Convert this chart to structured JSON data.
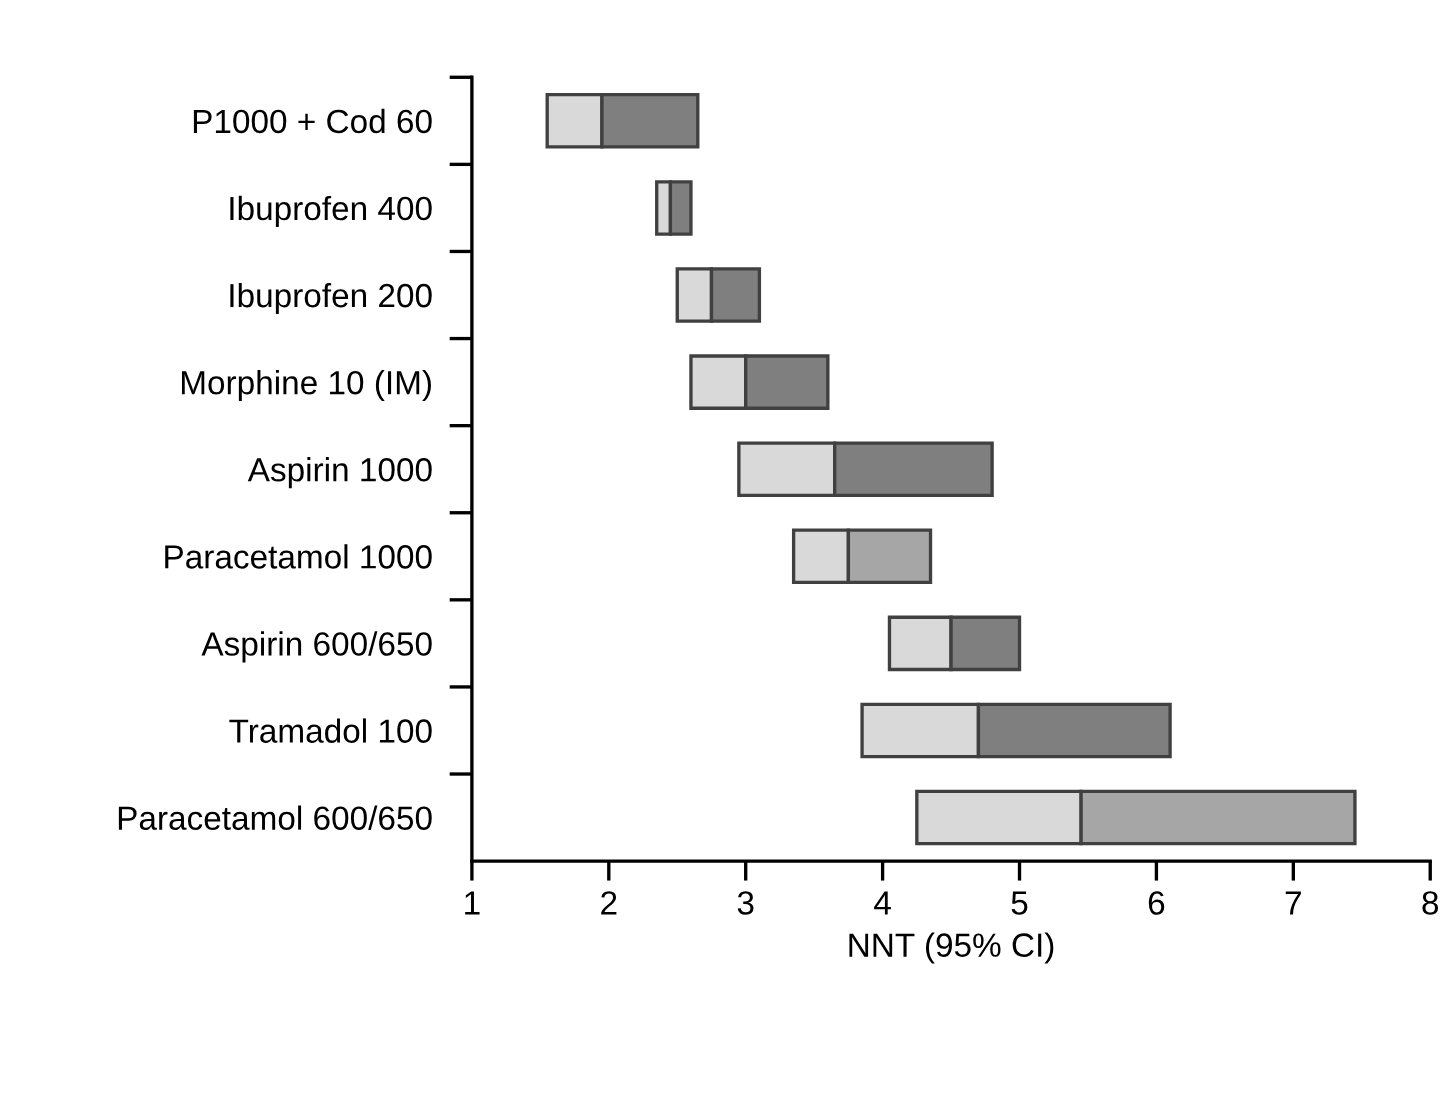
{
  "chart_data": {
    "type": "bar",
    "orientation": "horizontal",
    "categories": [
      "P1000 + Cod 60",
      "Ibuprofen 400",
      "Ibuprofen 200",
      "Morphine 10 (IM)",
      "Aspirin 1000",
      "Paracetamol 1000",
      "Aspirin 600/650",
      "Tramadol 100",
      "Paracetamol 600/650"
    ],
    "series": [
      {
        "color": "#d9d9d9",
        "base": [
          1.55,
          2.35,
          2.5,
          2.6,
          2.95,
          3.35,
          4.05,
          3.85,
          4.25
        ],
        "values": [
          0.4,
          0.1,
          0.25,
          0.4,
          0.7,
          0.4,
          0.45,
          0.85,
          1.2
        ]
      },
      {
        "colors": [
          "#7f7f7f",
          "#7f7f7f",
          "#7f7f7f",
          "#7f7f7f",
          "#7f7f7f",
          "#a6a6a6",
          "#7f7f7f",
          "#7f7f7f",
          "#a6a6a6"
        ],
        "base": [
          1.95,
          2.45,
          2.75,
          3.0,
          3.65,
          3.75,
          4.5,
          4.7,
          5.45
        ],
        "values": [
          0.7,
          0.15,
          0.35,
          0.6,
          1.15,
          0.6,
          0.5,
          1.4,
          2.0
        ]
      }
    ],
    "xlabel": "NNT (95% CI)",
    "xlim": [
      1,
      8
    ],
    "xticks": [
      1,
      2,
      3,
      4,
      5,
      6,
      7,
      8
    ],
    "grid": false
  }
}
